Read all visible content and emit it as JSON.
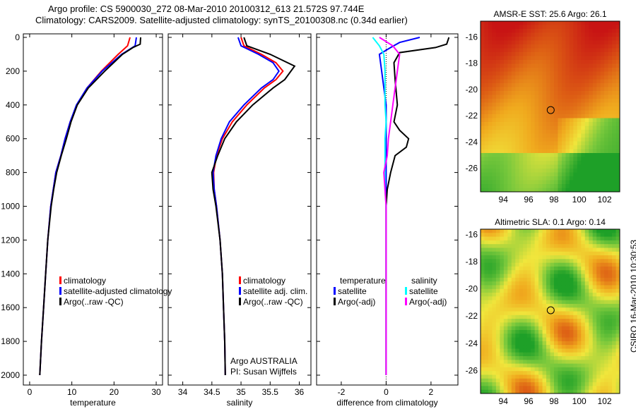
{
  "title_line1": "Argo profile: CS 5900030_272 08-Mar-2010 20100312_613 21.572S 97.744E",
  "title_line2": "Climatology: CARS2009. Satellite-adjusted climatology: synTS_20100308.nc (0.34d earlier)",
  "side_label": "CSIRO 16-Mar-2010 10:30:53",
  "colors": {
    "clim": "#ff0000",
    "sat": "#0000ff",
    "argo": "#000000",
    "sal_sat": "#00ffff",
    "sal_argo": "#ff00ff"
  },
  "chart_data": [
    {
      "type": "line",
      "xlabel": "temperature",
      "ylabel": "",
      "xlim": [
        -1.5,
        31.5
      ],
      "ylim": [
        2000,
        0
      ],
      "xticks": [
        0,
        10,
        20,
        30
      ],
      "yticks": [
        0,
        200,
        400,
        600,
        800,
        1000,
        1200,
        1400,
        1600,
        1800,
        2000
      ],
      "legend": [
        "climatology",
        "satellite-adjusted climatology",
        "Argo(..raw -QC)"
      ],
      "series": [
        {
          "name": "climatology",
          "color": "#ff0000",
          "depth": [
            0,
            50,
            100,
            200,
            300,
            400,
            500,
            600,
            700,
            800,
            900,
            1000,
            1200,
            1400,
            1600,
            1800,
            2000
          ],
          "values": [
            23.8,
            23.2,
            21,
            17,
            13.6,
            11.2,
            9.6,
            8.4,
            7.4,
            6.2,
            5.6,
            5,
            4.3,
            3.8,
            3.3,
            2.8,
            2.4
          ]
        },
        {
          "name": "satellite-adjusted climatology",
          "color": "#0000ff",
          "depth": [
            0,
            50,
            100,
            200,
            300,
            400,
            500,
            600,
            700,
            800,
            900,
            1000,
            1200,
            1400,
            1600,
            1800,
            2000
          ],
          "values": [
            25.3,
            25,
            21.8,
            17.2,
            13.6,
            11.1,
            9.6,
            8.4,
            7.4,
            6.2,
            5.6,
            5,
            4.3,
            3.8,
            3.3,
            2.8,
            2.4
          ]
        },
        {
          "name": "Argo(..raw -QC)",
          "color": "#000000",
          "depth": [
            0,
            40,
            60,
            100,
            200,
            300,
            400,
            500,
            600,
            700,
            800,
            900,
            1000,
            1200,
            1400,
            1600,
            1800,
            2000
          ],
          "values": [
            26.3,
            26.2,
            24.5,
            22,
            17.8,
            13.9,
            11.3,
            9.8,
            8.7,
            7.5,
            6.4,
            5.7,
            5.1,
            4.3,
            3.8,
            3.3,
            2.8,
            2.4
          ]
        }
      ]
    },
    {
      "type": "line",
      "xlabel": "salinity",
      "ylabel": "",
      "xlim": [
        33.75,
        36.2
      ],
      "ylim": [
        2000,
        0
      ],
      "xticks": [
        34,
        34.5,
        35,
        35.5,
        36
      ],
      "legend": [
        "climatology",
        "satellite adj. clim.",
        "Argo(..raw -QC)"
      ],
      "annotations": [
        "Argo AUSTRALIA",
        "PI: Susan Wijffels"
      ],
      "series": [
        {
          "name": "climatology",
          "color": "#ff0000",
          "depth": [
            0,
            50,
            100,
            150,
            200,
            250,
            300,
            400,
            500,
            600,
            700,
            800,
            900,
            1000,
            1200,
            1400,
            1600,
            1800,
            2000
          ],
          "values": [
            35.0,
            35.05,
            35.35,
            35.6,
            35.72,
            35.6,
            35.4,
            35.1,
            34.85,
            34.68,
            34.58,
            34.53,
            34.54,
            34.58,
            34.64,
            34.68,
            34.7,
            34.72,
            34.73
          ]
        },
        {
          "name": "satellite adj. clim.",
          "color": "#0000ff",
          "depth": [
            0,
            50,
            100,
            150,
            200,
            250,
            300,
            400,
            500,
            600,
            700,
            800,
            900,
            1000,
            1200,
            1400,
            1600,
            1800,
            2000
          ],
          "values": [
            34.95,
            35.0,
            35.3,
            35.55,
            35.65,
            35.55,
            35.35,
            35.05,
            34.8,
            34.66,
            34.57,
            34.52,
            34.54,
            34.58,
            34.64,
            34.68,
            34.7,
            34.72,
            34.73
          ]
        },
        {
          "name": "Argo(..raw -QC)",
          "color": "#000000",
          "depth": [
            0,
            50,
            100,
            170,
            250,
            300,
            400,
            500,
            600,
            700,
            800,
            900,
            1000,
            1200,
            1400,
            1600,
            1800,
            2000
          ],
          "values": [
            35.05,
            35.1,
            35.5,
            35.92,
            35.75,
            35.55,
            35.2,
            34.92,
            34.72,
            34.6,
            34.5,
            34.52,
            34.57,
            34.64,
            34.68,
            34.7,
            34.72,
            34.73
          ]
        }
      ]
    },
    {
      "type": "line",
      "xlabel": "difference from climatology",
      "ylabel": "",
      "xlim": [
        -3.1,
        3.2
      ],
      "ylim": [
        2000,
        0
      ],
      "xticks": [
        -2,
        0,
        2
      ],
      "legend": [
        "temperature",
        "satellite",
        "Argo(-adj)",
        "salinity",
        "satellite",
        "Argo(-adj)"
      ],
      "series": [
        {
          "name": "temperature satellite",
          "color": "#0000ff",
          "depth": [
            0,
            30,
            60,
            100,
            200,
            300,
            400,
            500,
            600,
            700,
            800,
            900,
            1000,
            2000
          ],
          "values": [
            1.5,
            0.6,
            0.2,
            -0.3,
            -0.2,
            -0.1,
            0,
            0,
            0,
            0,
            0,
            0,
            0,
            0
          ]
        },
        {
          "name": "temperature Argo(-adj)",
          "color": "#000000",
          "depth": [
            0,
            40,
            60,
            90,
            150,
            250,
            400,
            500,
            550,
            600,
            650,
            700,
            800,
            900,
            1000,
            2000
          ],
          "values": [
            2.8,
            2.7,
            2.2,
            0.6,
            0.35,
            0.4,
            0.5,
            0.35,
            0.6,
            1.0,
            0.9,
            0.4,
            0.2,
            0.05,
            0,
            0
          ]
        },
        {
          "name": "salinity satellite",
          "color": "#00ffff",
          "depth": [
            0,
            50,
            100,
            200,
            300,
            400,
            500,
            600,
            700,
            800,
            900,
            1000,
            2000
          ],
          "values": [
            -0.6,
            -0.3,
            -0.1,
            -0.05,
            -0.05,
            -0.05,
            0,
            -0.05,
            -0.05,
            -0.05,
            -0.05,
            0,
            0
          ]
        },
        {
          "name": "salinity Argo(-adj)",
          "color": "#ff00ff",
          "depth": [
            0,
            50,
            100,
            200,
            300,
            400,
            500,
            600,
            700,
            800,
            900,
            1000,
            2000
          ],
          "values": [
            -0.3,
            0.3,
            0.6,
            0.5,
            0.4,
            0.3,
            0.2,
            0.1,
            0.05,
            -0.1,
            -0.05,
            0,
            0
          ]
        }
      ]
    },
    {
      "type": "heatmap",
      "title": "AMSR-E SST: 25.6 Argo: 26.1",
      "xticks": [
        94,
        96,
        98,
        100,
        102
      ],
      "yticks": [
        -16,
        -18,
        -20,
        -22,
        -24,
        -26
      ],
      "xlim": [
        92.2,
        103.2
      ],
      "ylim": [
        -27.8,
        -14.8
      ],
      "marker": [
        97.744,
        -21.572
      ]
    },
    {
      "type": "heatmap",
      "title": "Altimetric SLA: 0.1 Argo: 0.14",
      "xticks": [
        94,
        96,
        98,
        100,
        102
      ],
      "yticks": [
        -16,
        -18,
        -20,
        -22,
        -24,
        -26
      ],
      "xlim": [
        92.2,
        103.2
      ],
      "ylim": [
        -27.7,
        -15.6
      ],
      "marker": [
        97.744,
        -21.572
      ]
    }
  ]
}
